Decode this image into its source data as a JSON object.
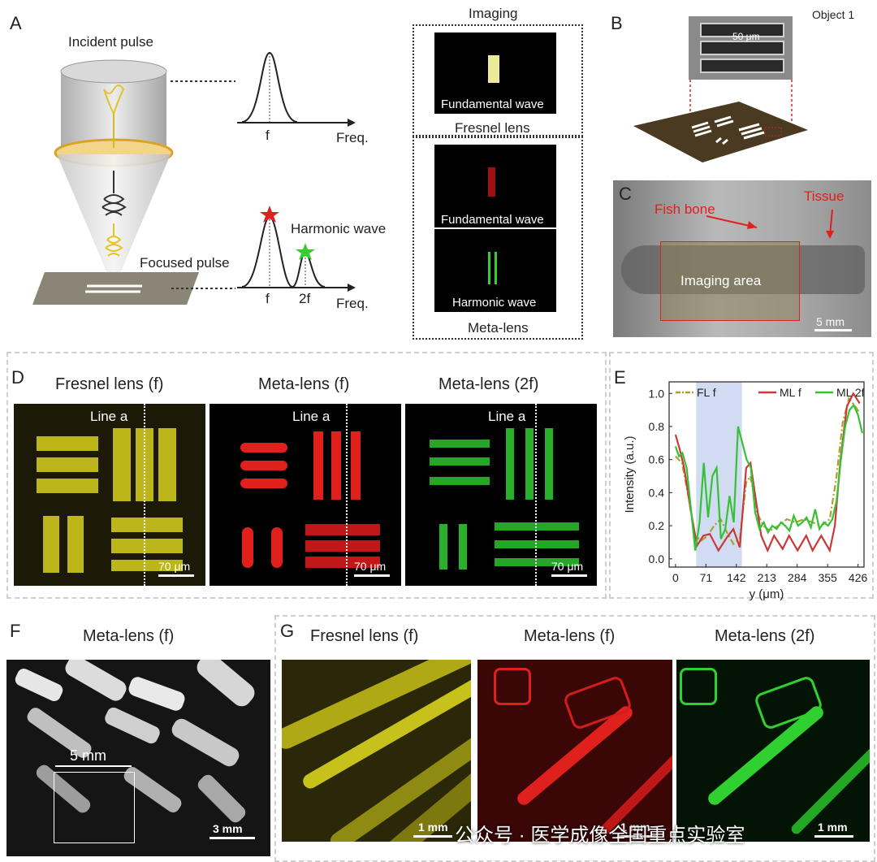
{
  "panel_labels": {
    "A": "A",
    "B": "B",
    "C": "C",
    "D": "D",
    "E": "E",
    "F": "F",
    "G": "G"
  },
  "panelA": {
    "incident_pulse": "Incident pulse",
    "focused_pulse": "Focused pulse",
    "harmonic_wave": "Harmonic wave",
    "freq": "Freq.",
    "f": "f",
    "two_f": "2f",
    "imaging": "Imaging",
    "fundamental_wave": "Fundamental wave",
    "fresnel_lens": "Fresnel lens",
    "harmonic_wave_caption": "Harmonic wave",
    "meta_lens": "Meta-lens"
  },
  "panelB": {
    "object": "Object 1",
    "scale": "50 μm"
  },
  "panelC": {
    "fish_bone": "Fish bone",
    "tissue": "Tissue",
    "imaging_area": "Imaging area",
    "scale": "5 mm"
  },
  "panelD": {
    "titles": [
      "Fresnel lens (f)",
      "Meta-lens (f)",
      "Meta-lens (2f)"
    ],
    "line_label": "Line a",
    "scale": "70 μm"
  },
  "panelF": {
    "title": "Meta-lens (f)",
    "inset": "5 mm",
    "scale": "3 mm"
  },
  "panelG": {
    "titles": [
      "Fresnel lens (f)",
      "Meta-lens (f)",
      "Meta-lens (2f)"
    ],
    "scale": "1 mm",
    "watermark": "公众号 · 医学成像全国重点实验室"
  },
  "colors": {
    "yellow": "#e8e32a",
    "red": "#e0201c",
    "green": "#2fd02f",
    "olive": "#a9a22a",
    "highlight": "#c9d5ef"
  },
  "chart_data": {
    "type": "line",
    "ylabel": "Intensity (a.u.)",
    "xlabel": "y (μm)",
    "xticks": [
      0,
      71,
      142,
      213,
      284,
      355,
      426
    ],
    "yticks": [
      0.0,
      0.2,
      0.4,
      0.6,
      0.8,
      1.0
    ],
    "xlim": [
      -15,
      440
    ],
    "ylim": [
      -0.05,
      1.07
    ],
    "highlight_range": [
      48,
      155
    ],
    "legend": "top",
    "series": [
      {
        "name": "FL f",
        "color": "#a9a22a",
        "style": "dashdot",
        "x": [
          0,
          15,
          30,
          45,
          60,
          75,
          90,
          105,
          120,
          135,
          150,
          165,
          175,
          190,
          205,
          220,
          240,
          260,
          280,
          300,
          320,
          340,
          360,
          375,
          390,
          405,
          420,
          430
        ],
        "y": [
          0.62,
          0.58,
          0.38,
          0.14,
          0.11,
          0.14,
          0.2,
          0.24,
          0.16,
          0.09,
          0.12,
          0.46,
          0.5,
          0.28,
          0.2,
          0.17,
          0.2,
          0.24,
          0.22,
          0.24,
          0.22,
          0.2,
          0.24,
          0.48,
          0.82,
          0.97,
          0.92,
          0.88
        ]
      },
      {
        "name": "ML f",
        "color": "#c83a3a",
        "style": "solid",
        "x": [
          0,
          10,
          20,
          35,
          50,
          65,
          80,
          100,
          120,
          135,
          150,
          165,
          175,
          185,
          200,
          215,
          230,
          250,
          265,
          285,
          305,
          320,
          340,
          360,
          372,
          385,
          400,
          415,
          430
        ],
        "y": [
          0.75,
          0.66,
          0.55,
          0.3,
          0.08,
          0.14,
          0.15,
          0.05,
          0.13,
          0.18,
          0.07,
          0.55,
          0.58,
          0.4,
          0.14,
          0.05,
          0.14,
          0.06,
          0.14,
          0.05,
          0.14,
          0.05,
          0.14,
          0.05,
          0.2,
          0.6,
          0.92,
          1.0,
          0.94
        ]
      },
      {
        "name": "ML 2f",
        "color": "#37c137",
        "style": "solid",
        "x": [
          0,
          8,
          16,
          26,
          36,
          46,
          56,
          66,
          76,
          86,
          96,
          106,
          116,
          126,
          136,
          146,
          156,
          166,
          176,
          186,
          196,
          206,
          216,
          226,
          236,
          246,
          256,
          266,
          276,
          286,
          296,
          306,
          316,
          326,
          336,
          346,
          356,
          366,
          376,
          386,
          396,
          406,
          416,
          426,
          436
        ],
        "y": [
          0.68,
          0.62,
          0.64,
          0.55,
          0.3,
          0.05,
          0.22,
          0.58,
          0.25,
          0.5,
          0.55,
          0.12,
          0.18,
          0.38,
          0.22,
          0.8,
          0.7,
          0.6,
          0.55,
          0.28,
          0.18,
          0.22,
          0.16,
          0.2,
          0.18,
          0.22,
          0.2,
          0.17,
          0.26,
          0.2,
          0.22,
          0.25,
          0.19,
          0.3,
          0.18,
          0.22,
          0.2,
          0.24,
          0.35,
          0.6,
          0.8,
          0.9,
          0.93,
          0.87,
          0.76
        ]
      }
    ]
  }
}
